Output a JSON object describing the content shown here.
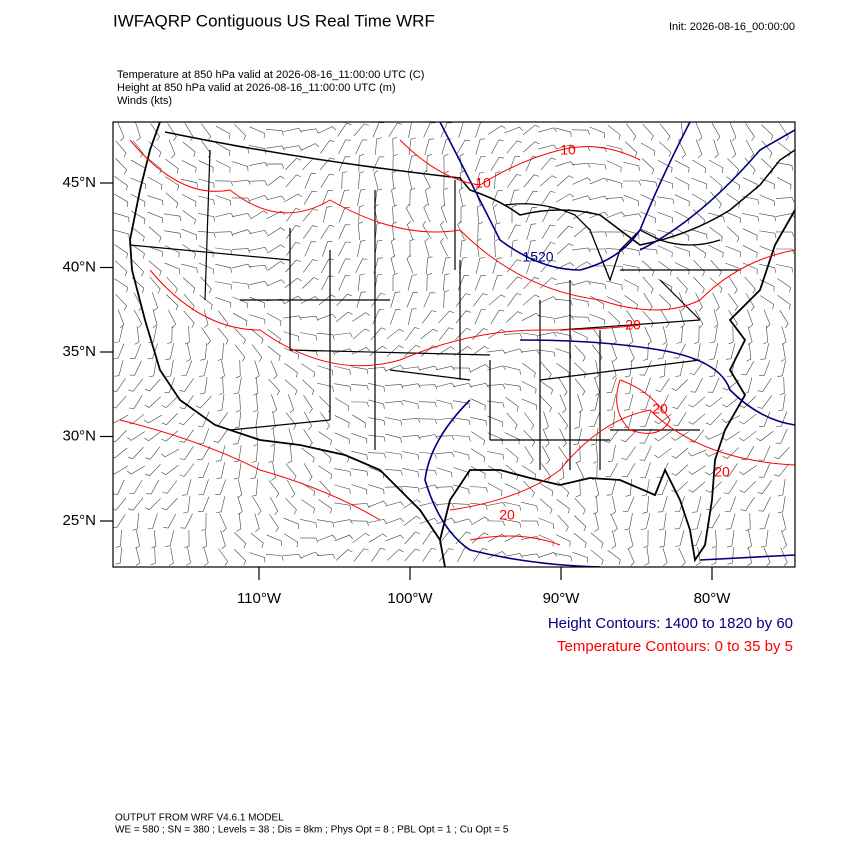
{
  "header": {
    "title": "IWFAQRP Contiguous US Real Time WRF",
    "init": "Init: 2026-08-16_00:00:00",
    "fields": [
      "Temperature at 850 hPa valid at 2026-08-16_11:00:00 UTC   (C)",
      "Height at 850 hPa valid at 2026-08-16_11:00:00 UTC   (m)",
      "Winds   (kts)"
    ]
  },
  "map": {
    "lat_ticks": [
      {
        "value": 45,
        "label": "45°N"
      },
      {
        "value": 40,
        "label": "40°N"
      },
      {
        "value": 35,
        "label": "35°N"
      },
      {
        "value": 30,
        "label": "30°N"
      },
      {
        "value": 25,
        "label": "25°N"
      }
    ],
    "lon_ticks": [
      {
        "value": -110,
        "label": "110°W"
      },
      {
        "value": -100,
        "label": "100°W"
      },
      {
        "value": -90,
        "label": "90°W"
      },
      {
        "value": -80,
        "label": "80°W"
      }
    ],
    "contour_labels": [
      "10",
      "10",
      "1520",
      "20",
      "20",
      "20",
      "20"
    ]
  },
  "legend": {
    "height": "Height Contours: 1400 to 1820 by 60",
    "temperature": "Temperature Contours: 0 to 35 by 5"
  },
  "footer": [
    "OUTPUT FROM WRF V4.6.1 MODEL",
    "WE = 580 ; SN = 380 ; Levels = 38 ; Dis = 8km ; Phys Opt = 8 ; PBL Opt = 1 ; Cu Opt = 5"
  ]
}
